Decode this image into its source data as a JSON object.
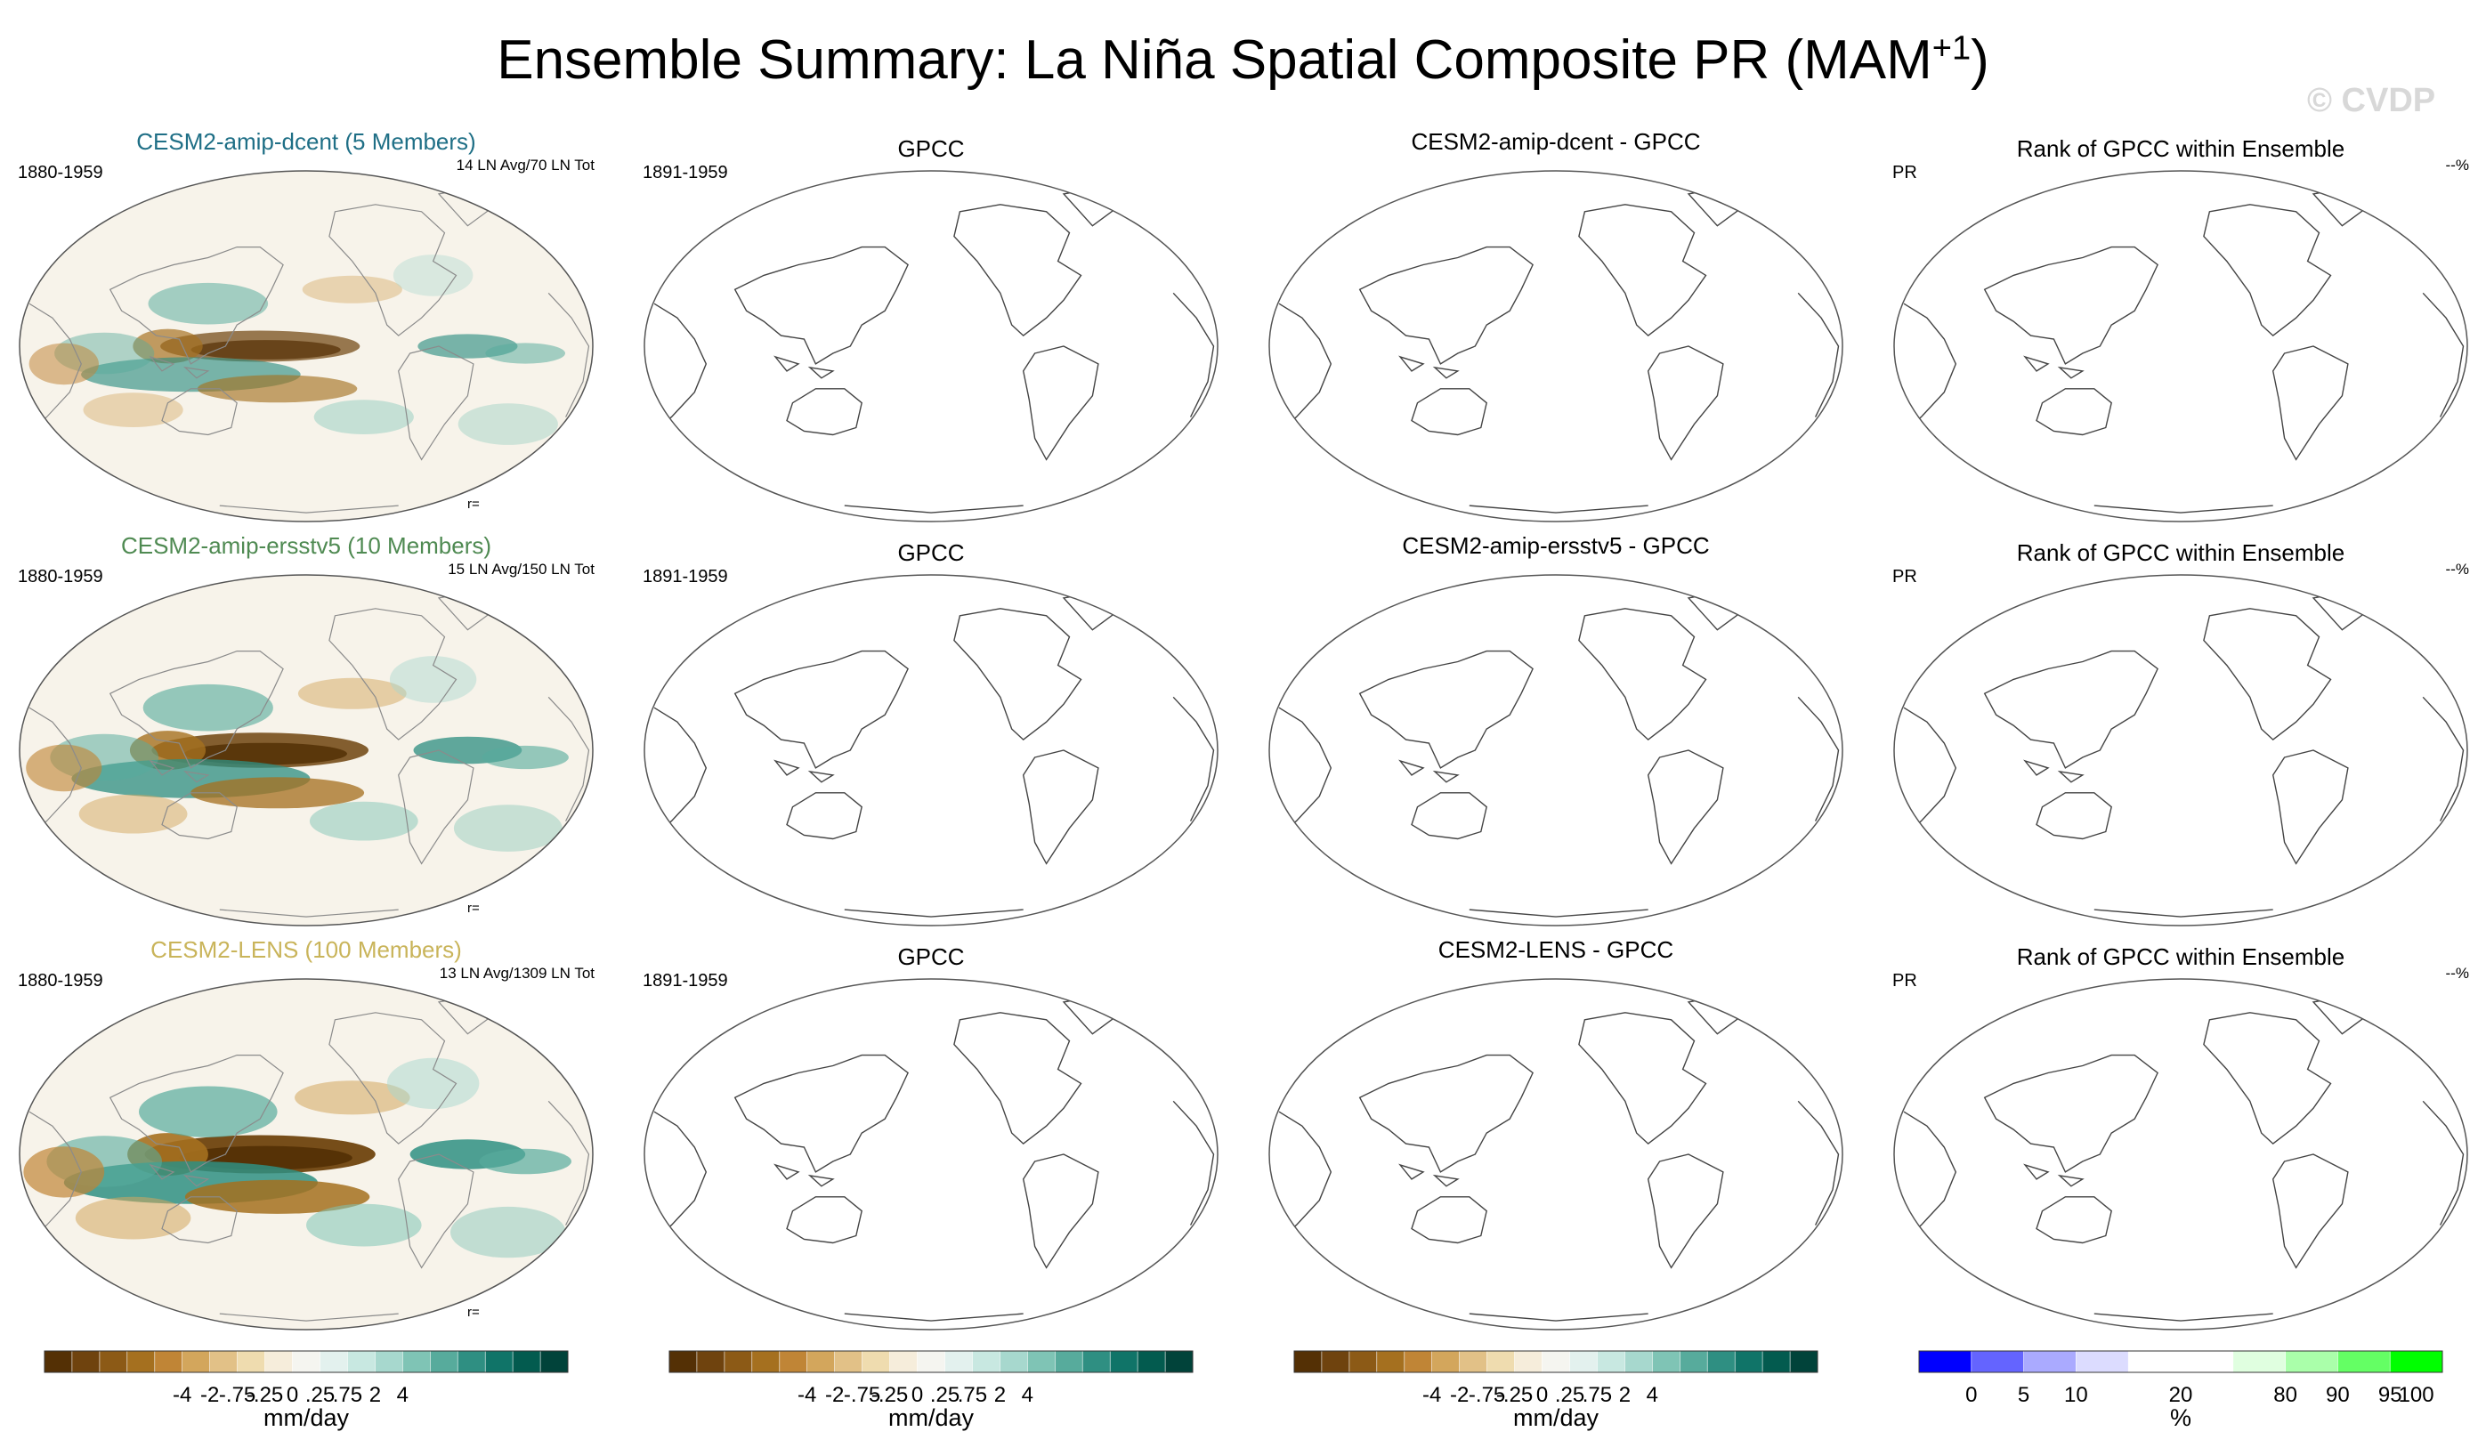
{
  "title": {
    "main": "Ensemble Summary: La Niña Spatial Composite PR (MAM",
    "sup": "+1",
    "close": ")"
  },
  "watermark": "© CVDP",
  "colors": {
    "brown_green": [
      "#543005",
      "#6f430e",
      "#8c5a16",
      "#a5701f",
      "#c08536",
      "#d3a65c",
      "#e2c187",
      "#efdcaf",
      "#f6eddb",
      "#f5f5f0",
      "#e3f1ee",
      "#c8e8e1",
      "#a7d8ce",
      "#7fc4b5",
      "#57ab9c",
      "#2f8f82",
      "#107468",
      "#035b4f",
      "#01433a"
    ],
    "rank": [
      "#0000ff",
      "#6464ff",
      "#aaaaff",
      "#dcdcff",
      "#ffffff",
      "#ffffff",
      "#e0ffe0",
      "#aaffaa",
      "#64ff64",
      "#00ff00"
    ],
    "ocean_bg": "#f7f3ea",
    "coast": "#8b8b8b"
  },
  "rows": [
    {
      "model": "CESM2-amip-dcent (5 Members)",
      "model_color": "#1f6f86",
      "model_period": "1880-1959",
      "composite_info": "14 LN Avg/70 LN Tot",
      "r_label": "r=",
      "obs_title": "GPCC",
      "obs_period": "1891-1959",
      "diff_title": "CESM2-amip-dcent - GPCC",
      "rank_title": "Rank of GPCC within Ensemble",
      "rank_left": "PR",
      "rank_right": "--%",
      "intensity": 0.55
    },
    {
      "model": "CESM2-amip-ersstv5 (10 Members)",
      "model_color": "#4f8a52",
      "model_period": "1880-1959",
      "composite_info": "15 LN Avg/150 LN Tot",
      "r_label": "r=",
      "obs_title": "GPCC",
      "obs_period": "1891-1959",
      "diff_title": "CESM2-amip-ersstv5 - GPCC",
      "rank_title": "Rank of GPCC within Ensemble",
      "rank_left": "PR",
      "rank_right": "--%",
      "intensity": 0.8
    },
    {
      "model": "CESM2-LENS (100 Members)",
      "model_color": "#c9b45a",
      "model_period": "1880-1959",
      "composite_info": "13 LN Avg/1309 LN Tot",
      "r_label": "r=",
      "obs_title": "GPCC",
      "obs_period": "1891-1959",
      "diff_title": "CESM2-LENS - GPCC",
      "rank_title": "Rank of GPCC within Ensemble",
      "rank_left": "PR",
      "rank_right": "--%",
      "intensity": 1.0
    }
  ],
  "colorbars": [
    {
      "unit": "mm/day",
      "ticks": [
        "-4",
        "-2",
        "-.75",
        "-.25",
        "0",
        ".25",
        ".75",
        "2",
        "4"
      ]
    },
    {
      "unit": "mm/day",
      "ticks": [
        "-4",
        "-2",
        "-.75",
        "-.25",
        "0",
        ".25",
        ".75",
        "2",
        "4"
      ]
    },
    {
      "unit": "mm/day",
      "ticks": [
        "-4",
        "-2",
        "-.75",
        "-.25",
        "0",
        ".25",
        ".75",
        "2",
        "4"
      ]
    },
    {
      "unit": "%",
      "ticks": [
        "0",
        "5",
        "10",
        "20",
        "80",
        "90",
        "95",
        "100"
      ]
    }
  ],
  "chart_data": [
    {
      "type": "heatmap",
      "title": "CESM2-amip-dcent (5 Members)",
      "subtitle": "1880-1959",
      "annotation": "14 LN Avg/70 LN Tot",
      "units": "mm/day",
      "levels": [
        -4,
        -2,
        -0.75,
        -0.25,
        0,
        0.25,
        0.75,
        2,
        4
      ]
    },
    {
      "type": "heatmap",
      "title": "CESM2-amip-ersstv5 (10 Members)",
      "subtitle": "1880-1959",
      "annotation": "15 LN Avg/150 LN Tot",
      "units": "mm/day",
      "levels": [
        -4,
        -2,
        -0.75,
        -0.25,
        0,
        0.25,
        0.75,
        2,
        4
      ]
    },
    {
      "type": "heatmap",
      "title": "CESM2-LENS (100 Members)",
      "subtitle": "1880-1959",
      "annotation": "13 LN Avg/1309 LN Tot",
      "units": "mm/day",
      "levels": [
        -4,
        -2,
        -0.75,
        -0.25,
        0,
        0.25,
        0.75,
        2,
        4
      ]
    }
  ]
}
